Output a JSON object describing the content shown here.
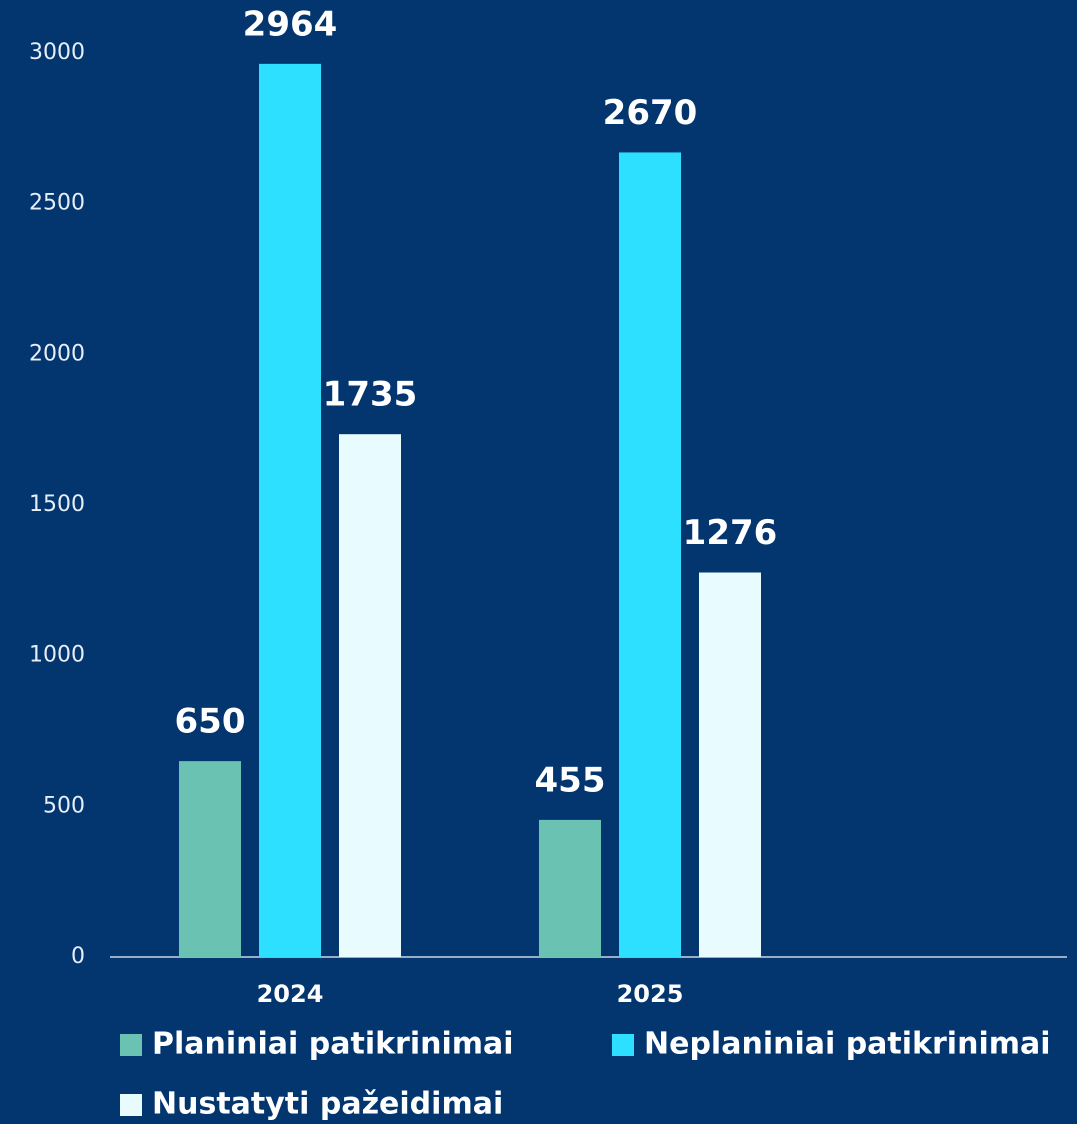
{
  "chart_data": {
    "type": "bar",
    "categories": [
      "2024",
      "2025"
    ],
    "series": [
      {
        "name": "Planiniai patikrinimai",
        "color": "#6ac3b2",
        "values": [
          650,
          455
        ]
      },
      {
        "name": "Neplaniniai patikrinimai",
        "color": "#2ee0ff",
        "values": [
          2964,
          2670
        ]
      },
      {
        "name": "Nustatyti pažeidimai",
        "color": "#e8fbff",
        "values": [
          1735,
          1276
        ]
      }
    ],
    "ylim": [
      0,
      3000
    ],
    "yticks": [
      0,
      500,
      1000,
      1500,
      2000,
      2500,
      3000
    ],
    "grid": false
  }
}
